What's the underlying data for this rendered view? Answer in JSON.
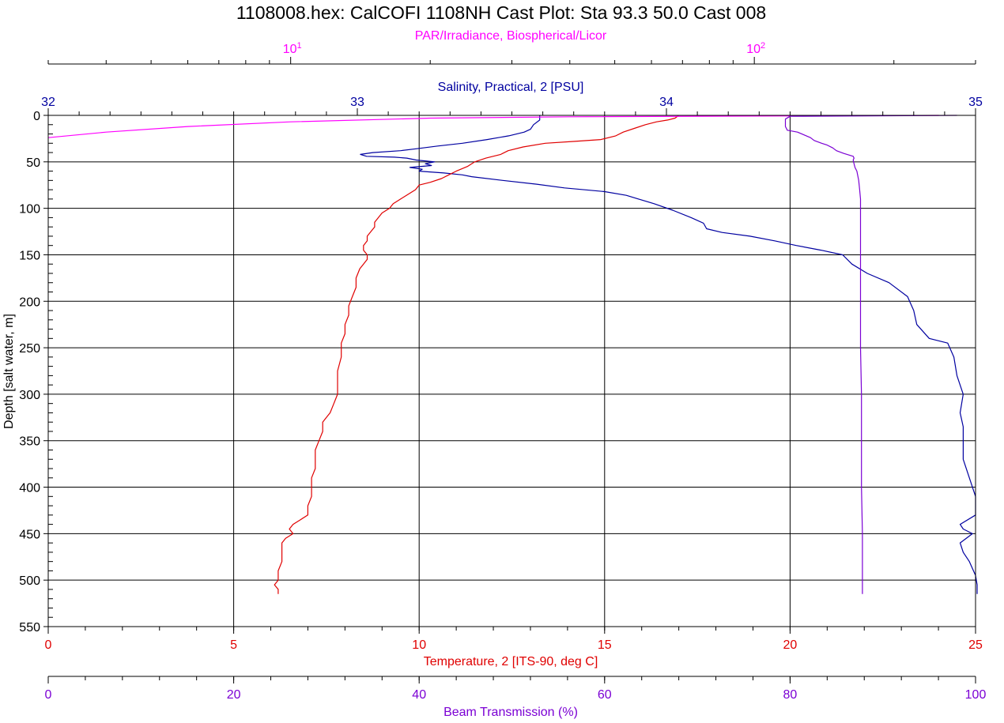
{
  "chart_data": {
    "type": "line",
    "title": "1108008.hex: CalCOFI 1108NH Cast Plot:  Sta 93.3 50.0 Cast 008",
    "y_axis": {
      "label": "Depth [salt water, m]",
      "range": [
        0,
        550
      ],
      "inverted": true,
      "ticks": [
        0,
        50,
        100,
        150,
        200,
        250,
        300,
        350,
        400,
        450,
        500,
        550
      ]
    },
    "x_axes": [
      {
        "id": "par",
        "label": "PAR/Irradiance, Biospherical/Licor",
        "position": "top-outer",
        "scale": "log",
        "range": [
          3,
          300
        ],
        "ticks": [
          {
            "value": 10,
            "base": "10",
            "exp": "1"
          },
          {
            "value": 100,
            "base": "10",
            "exp": "2"
          }
        ],
        "color": "#ff00ff"
      },
      {
        "id": "salinity",
        "label": "Salinity, Practical, 2 [PSU]",
        "position": "top-inner",
        "range": [
          32,
          35
        ],
        "ticks": [
          "32",
          "33",
          "34",
          "35"
        ],
        "color": "#0000a0"
      },
      {
        "id": "temperature",
        "label": "Temperature, 2 [ITS-90, deg C]",
        "position": "bottom-inner",
        "range": [
          0,
          25
        ],
        "ticks": [
          "0",
          "5",
          "10",
          "15",
          "20",
          "25"
        ],
        "color": "#e00000"
      },
      {
        "id": "beam",
        "label": "Beam Transmission (%)",
        "position": "bottom-outer",
        "range": [
          0,
          100
        ],
        "ticks": [
          "0",
          "20",
          "40",
          "60",
          "80",
          "100"
        ],
        "color": "#7b00d4"
      }
    ],
    "grid": true,
    "series": [
      {
        "axis": "salinity",
        "color": "#0000a0",
        "points": [
          [
            33.59,
            0
          ],
          [
            33.59,
            5
          ],
          [
            33.57,
            10
          ],
          [
            33.56,
            15
          ],
          [
            33.54,
            18
          ],
          [
            33.49,
            22
          ],
          [
            33.42,
            26
          ],
          [
            33.34,
            30
          ],
          [
            33.26,
            33
          ],
          [
            33.19,
            36
          ],
          [
            33.14,
            38
          ],
          [
            33.05,
            40
          ],
          [
            33.01,
            42
          ],
          [
            33.03,
            44
          ],
          [
            33.12,
            45
          ],
          [
            33.16,
            46
          ],
          [
            33.19,
            48
          ],
          [
            33.25,
            50
          ],
          [
            33.22,
            52
          ],
          [
            33.24,
            54
          ],
          [
            33.17,
            56
          ],
          [
            33.21,
            58
          ],
          [
            33.2,
            60
          ],
          [
            33.28,
            62
          ],
          [
            33.34,
            64
          ],
          [
            33.37,
            66
          ],
          [
            33.47,
            70
          ],
          [
            33.58,
            74
          ],
          [
            33.67,
            78
          ],
          [
            33.8,
            82
          ],
          [
            33.87,
            86
          ],
          [
            33.91,
            90
          ],
          [
            33.96,
            95
          ],
          [
            34.02,
            102
          ],
          [
            34.08,
            110
          ],
          [
            34.12,
            116
          ],
          [
            34.13,
            122
          ],
          [
            34.18,
            126
          ],
          [
            34.27,
            130
          ],
          [
            34.35,
            135
          ],
          [
            34.42,
            140
          ],
          [
            34.5,
            145
          ],
          [
            34.57,
            150
          ],
          [
            34.6,
            160
          ],
          [
            34.65,
            170
          ],
          [
            34.72,
            180
          ],
          [
            34.78,
            195
          ],
          [
            34.8,
            210
          ],
          [
            34.81,
            225
          ],
          [
            34.85,
            240
          ],
          [
            34.91,
            245
          ],
          [
            34.93,
            260
          ],
          [
            34.94,
            280
          ],
          [
            34.96,
            300
          ],
          [
            34.95,
            320
          ],
          [
            34.96,
            335
          ],
          [
            34.96,
            350
          ],
          [
            34.96,
            370
          ],
          [
            34.98,
            390
          ],
          [
            35.0,
            410
          ],
          [
            35.0,
            430
          ],
          [
            34.95,
            440
          ],
          [
            34.96,
            445
          ],
          [
            34.99,
            450
          ],
          [
            34.95,
            460
          ],
          [
            34.96,
            470
          ],
          [
            34.98,
            480
          ],
          [
            35.0,
            495
          ],
          [
            35.01,
            505
          ],
          [
            35.03,
            515
          ]
        ]
      },
      {
        "axis": "temperature",
        "color": "#e00000",
        "points": [
          [
            17.0,
            0
          ],
          [
            16.9,
            3
          ],
          [
            16.7,
            5
          ],
          [
            16.4,
            7
          ],
          [
            16.1,
            10
          ],
          [
            15.8,
            14
          ],
          [
            15.5,
            18
          ],
          [
            15.3,
            22
          ],
          [
            14.9,
            26
          ],
          [
            14.2,
            28
          ],
          [
            13.4,
            30
          ],
          [
            12.8,
            34
          ],
          [
            12.4,
            38
          ],
          [
            12.2,
            42
          ],
          [
            11.8,
            46
          ],
          [
            11.5,
            50
          ],
          [
            11.3,
            55
          ],
          [
            11.0,
            60
          ],
          [
            10.8,
            64
          ],
          [
            10.6,
            68
          ],
          [
            10.3,
            72
          ],
          [
            10.0,
            75
          ],
          [
            9.9,
            80
          ],
          [
            9.7,
            85
          ],
          [
            9.5,
            90
          ],
          [
            9.3,
            95
          ],
          [
            9.2,
            100
          ],
          [
            9.0,
            105
          ],
          [
            8.9,
            110
          ],
          [
            8.8,
            115
          ],
          [
            8.8,
            120
          ],
          [
            8.7,
            125
          ],
          [
            8.6,
            130
          ],
          [
            8.6,
            135
          ],
          [
            8.5,
            140
          ],
          [
            8.5,
            145
          ],
          [
            8.6,
            150
          ],
          [
            8.6,
            155
          ],
          [
            8.5,
            160
          ],
          [
            8.4,
            165
          ],
          [
            8.3,
            175
          ],
          [
            8.3,
            185
          ],
          [
            8.2,
            195
          ],
          [
            8.1,
            205
          ],
          [
            8.1,
            215
          ],
          [
            8.0,
            225
          ],
          [
            8.0,
            235
          ],
          [
            7.9,
            245
          ],
          [
            7.9,
            260
          ],
          [
            7.8,
            275
          ],
          [
            7.8,
            290
          ],
          [
            7.8,
            300
          ],
          [
            7.7,
            310
          ],
          [
            7.6,
            320
          ],
          [
            7.5,
            325
          ],
          [
            7.4,
            330
          ],
          [
            7.4,
            340
          ],
          [
            7.3,
            350
          ],
          [
            7.2,
            360
          ],
          [
            7.2,
            370
          ],
          [
            7.2,
            380
          ],
          [
            7.1,
            390
          ],
          [
            7.1,
            400
          ],
          [
            7.1,
            410
          ],
          [
            7.0,
            420
          ],
          [
            7.0,
            430
          ],
          [
            6.8,
            435
          ],
          [
            6.6,
            440
          ],
          [
            6.5,
            445
          ],
          [
            6.6,
            450
          ],
          [
            6.4,
            455
          ],
          [
            6.3,
            460
          ],
          [
            6.3,
            470
          ],
          [
            6.3,
            480
          ],
          [
            6.2,
            490
          ],
          [
            6.2,
            500
          ],
          [
            6.1,
            505
          ],
          [
            6.2,
            510
          ],
          [
            6.2,
            515
          ]
        ]
      },
      {
        "axis": "par",
        "color": "#ff00ff",
        "points": [
          [
            250,
            0
          ],
          [
            40,
            1.5
          ],
          [
            20,
            3
          ],
          [
            10,
            7
          ],
          [
            6,
            12
          ],
          [
            4,
            18
          ],
          [
            3,
            24
          ]
        ]
      },
      {
        "axis": "beam",
        "color": "#7b00d4",
        "points": [
          [
            98,
            0
          ],
          [
            80,
            1
          ],
          [
            79.5,
            4
          ],
          [
            79.5,
            8
          ],
          [
            79.5,
            12
          ],
          [
            79.7,
            16
          ],
          [
            80.8,
            18
          ],
          [
            81.5,
            21
          ],
          [
            82.2,
            24
          ],
          [
            82.6,
            27
          ],
          [
            83.4,
            30
          ],
          [
            84.0,
            32
          ],
          [
            84.6,
            35
          ],
          [
            85.0,
            38
          ],
          [
            85.8,
            41
          ],
          [
            86.8,
            44
          ],
          [
            86.9,
            46
          ],
          [
            86.8,
            48
          ],
          [
            86.9,
            52
          ],
          [
            87.0,
            56
          ],
          [
            87.2,
            60
          ],
          [
            87.4,
            70
          ],
          [
            87.5,
            80
          ],
          [
            87.6,
            90
          ],
          [
            87.6,
            100
          ],
          [
            87.6,
            150
          ],
          [
            87.6,
            200
          ],
          [
            87.6,
            250
          ],
          [
            87.7,
            300
          ],
          [
            87.7,
            350
          ],
          [
            87.7,
            400
          ],
          [
            87.8,
            450
          ],
          [
            87.8,
            500
          ],
          [
            87.8,
            515
          ]
        ]
      }
    ]
  }
}
